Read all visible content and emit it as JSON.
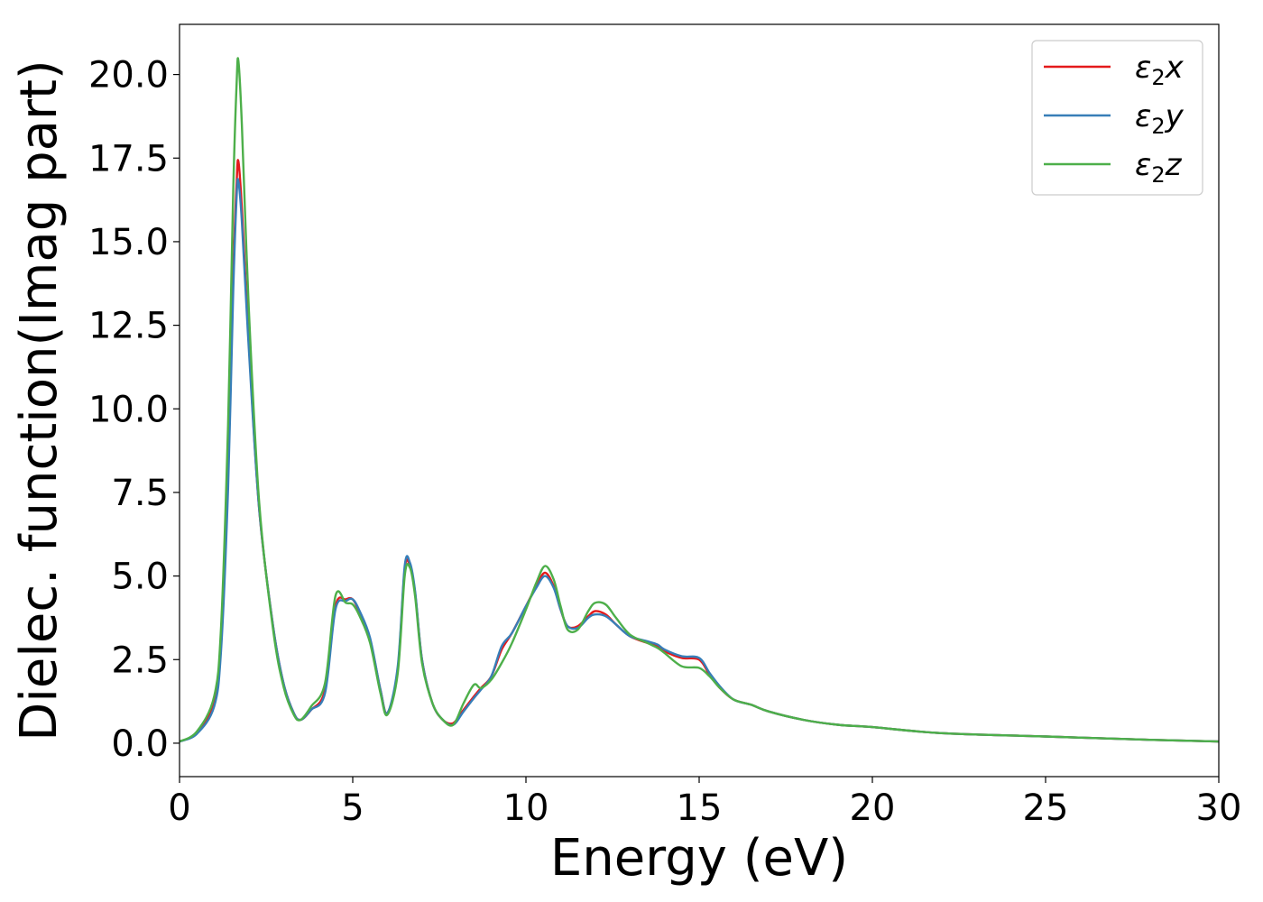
{
  "chart_data": {
    "type": "line",
    "title": "",
    "xlabel": "Energy (eV)",
    "ylabel": "Dielec. function(Imag part)",
    "xlim": [
      0,
      30
    ],
    "ylim": [
      -1.0,
      21.5
    ],
    "xticks": [
      0,
      5,
      10,
      15,
      20,
      25,
      30
    ],
    "xtick_labels": [
      "0",
      "5",
      "10",
      "15",
      "20",
      "25",
      "30"
    ],
    "yticks": [
      0.0,
      2.5,
      5.0,
      7.5,
      10.0,
      12.5,
      15.0,
      17.5,
      20.0
    ],
    "ytick_labels": [
      "0.0",
      "2.5",
      "5.0",
      "7.5",
      "10.0",
      "12.5",
      "15.0",
      "17.5",
      "20.0"
    ],
    "grid": false,
    "legend_position": "top-right",
    "series": [
      {
        "name": "ε₂x",
        "legend_base": "ε",
        "legend_sub": "2",
        "legend_suffix": "x",
        "color": "#e41a1c",
        "x": [
          0,
          0.5,
          1.0,
          1.2,
          1.4,
          1.55,
          1.65,
          1.7,
          1.8,
          2.0,
          2.3,
          2.7,
          3.0,
          3.3,
          3.5,
          3.8,
          4.2,
          4.5,
          4.8,
          5.0,
          5.2,
          5.5,
          5.8,
          6.0,
          6.3,
          6.5,
          6.65,
          6.8,
          7.0,
          7.3,
          7.6,
          7.9,
          8.2,
          8.5,
          8.7,
          9.0,
          9.3,
          9.6,
          10.0,
          10.3,
          10.55,
          10.8,
          11.0,
          11.2,
          11.5,
          11.8,
          12.0,
          12.3,
          12.6,
          13.0,
          13.5,
          13.8,
          14.0,
          14.5,
          15.0,
          15.3,
          15.6,
          16.0,
          16.5,
          17.0,
          18.0,
          19.0,
          20.0,
          22.0,
          25.0,
          28.0,
          30.0
        ],
        "y": [
          0.05,
          0.3,
          1.2,
          3.0,
          8.0,
          14.0,
          16.8,
          17.4,
          16.0,
          12.0,
          7.0,
          3.5,
          1.8,
          0.9,
          0.7,
          1.0,
          1.6,
          4.1,
          4.3,
          4.3,
          3.9,
          3.1,
          1.6,
          0.9,
          2.2,
          5.2,
          5.3,
          4.5,
          2.5,
          1.2,
          0.7,
          0.6,
          1.0,
          1.4,
          1.65,
          2.0,
          2.8,
          3.3,
          4.1,
          4.7,
          5.1,
          4.7,
          4.0,
          3.5,
          3.5,
          3.8,
          3.95,
          3.85,
          3.55,
          3.2,
          3.0,
          2.9,
          2.75,
          2.55,
          2.5,
          2.05,
          1.65,
          1.3,
          1.15,
          0.95,
          0.7,
          0.55,
          0.48,
          0.3,
          0.2,
          0.1,
          0.05
        ]
      },
      {
        "name": "ε₂y",
        "legend_base": "ε",
        "legend_sub": "2",
        "legend_suffix": "y",
        "color": "#377eb8",
        "x": [
          0,
          0.5,
          1.0,
          1.2,
          1.4,
          1.55,
          1.65,
          1.7,
          1.8,
          2.0,
          2.3,
          2.7,
          3.0,
          3.3,
          3.5,
          3.8,
          4.2,
          4.5,
          4.8,
          5.0,
          5.2,
          5.5,
          5.8,
          6.0,
          6.3,
          6.5,
          6.65,
          6.8,
          7.0,
          7.3,
          7.6,
          7.9,
          8.2,
          8.5,
          8.7,
          9.0,
          9.3,
          9.6,
          10.0,
          10.3,
          10.55,
          10.8,
          11.0,
          11.2,
          11.5,
          11.8,
          12.0,
          12.3,
          12.6,
          13.0,
          13.5,
          13.8,
          14.0,
          14.5,
          15.0,
          15.3,
          15.6,
          16.0,
          16.5,
          17.0,
          18.0,
          19.0,
          20.0,
          22.0,
          25.0,
          28.0,
          30.0
        ],
        "y": [
          0.05,
          0.28,
          1.1,
          2.8,
          7.6,
          13.5,
          16.4,
          16.8,
          15.6,
          11.8,
          7.0,
          3.5,
          1.8,
          0.9,
          0.7,
          1.0,
          1.5,
          4.0,
          4.25,
          4.3,
          3.95,
          3.15,
          1.6,
          0.9,
          2.3,
          5.3,
          5.4,
          4.55,
          2.5,
          1.2,
          0.7,
          0.55,
          0.95,
          1.35,
          1.6,
          2.0,
          2.9,
          3.3,
          4.1,
          4.65,
          5.0,
          4.65,
          4.0,
          3.5,
          3.45,
          3.75,
          3.85,
          3.8,
          3.55,
          3.2,
          3.05,
          2.95,
          2.8,
          2.6,
          2.55,
          2.1,
          1.7,
          1.3,
          1.15,
          0.95,
          0.7,
          0.55,
          0.48,
          0.3,
          0.2,
          0.1,
          0.05
        ]
      },
      {
        "name": "ε₂z",
        "legend_base": "ε",
        "legend_sub": "2",
        "legend_suffix": "z",
        "color": "#4daf4a",
        "x": [
          0,
          0.5,
          1.0,
          1.2,
          1.4,
          1.55,
          1.65,
          1.7,
          1.8,
          2.0,
          2.3,
          2.7,
          3.0,
          3.3,
          3.5,
          3.8,
          4.2,
          4.5,
          4.8,
          5.0,
          5.2,
          5.5,
          5.8,
          6.0,
          6.3,
          6.5,
          6.65,
          6.8,
          7.0,
          7.3,
          7.6,
          7.9,
          8.2,
          8.5,
          8.7,
          9.0,
          9.3,
          9.6,
          10.0,
          10.3,
          10.55,
          10.8,
          11.0,
          11.2,
          11.5,
          11.8,
          12.0,
          12.3,
          12.6,
          13.0,
          13.5,
          13.8,
          14.0,
          14.5,
          15.0,
          15.3,
          15.6,
          16.0,
          16.5,
          17.0,
          18.0,
          19.0,
          20.0,
          22.0,
          25.0,
          28.0,
          30.0
        ],
        "y": [
          0.05,
          0.35,
          1.4,
          3.5,
          9.5,
          16.5,
          19.8,
          20.4,
          18.5,
          13.0,
          7.2,
          3.4,
          1.7,
          0.85,
          0.7,
          1.1,
          1.8,
          4.4,
          4.2,
          4.15,
          3.8,
          3.0,
          1.5,
          0.85,
          2.1,
          5.0,
          5.25,
          4.4,
          2.4,
          1.2,
          0.7,
          0.55,
          1.2,
          1.75,
          1.65,
          1.9,
          2.4,
          3.0,
          4.0,
          4.8,
          5.3,
          4.9,
          4.1,
          3.4,
          3.4,
          3.95,
          4.2,
          4.15,
          3.75,
          3.25,
          3.0,
          2.85,
          2.7,
          2.3,
          2.25,
          2.0,
          1.65,
          1.3,
          1.15,
          0.95,
          0.7,
          0.55,
          0.48,
          0.3,
          0.2,
          0.1,
          0.05
        ]
      }
    ]
  }
}
